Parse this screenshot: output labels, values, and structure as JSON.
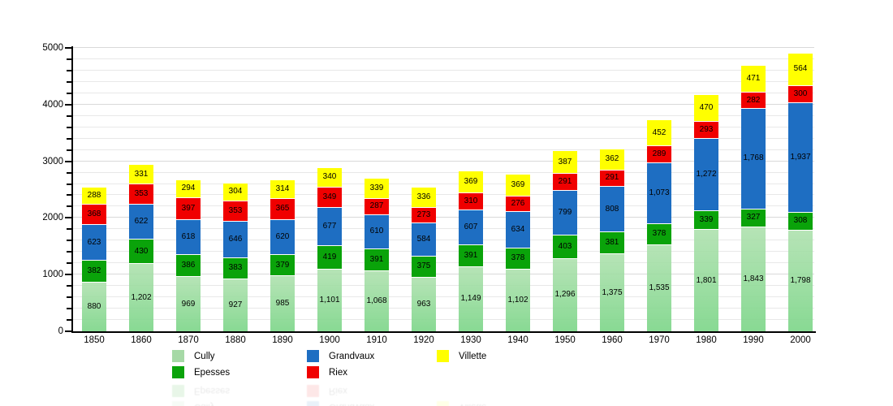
{
  "chart_data": {
    "type": "bar",
    "stacked": true,
    "title": "",
    "xlabel": "",
    "ylabel": "",
    "categories": [
      "1850",
      "1860",
      "1870",
      "1880",
      "1890",
      "1900",
      "1910",
      "1920",
      "1930",
      "1940",
      "1950",
      "1960",
      "1970",
      "1980",
      "1990",
      "2000"
    ],
    "series": [
      {
        "name": "Cully",
        "color": "#a6d9a6",
        "bar_gradient": [
          "rgba(172,224,172,0.88)",
          "rgba(126,214,138,0.92)"
        ],
        "values": [
          880,
          1202,
          969,
          927,
          985,
          1101,
          1068,
          963,
          1149,
          1102,
          1296,
          1375,
          1535,
          1801,
          1843,
          1798
        ]
      },
      {
        "name": "Epesses",
        "color": "#0aa30a",
        "bar_gradient": null,
        "values": [
          382,
          430,
          386,
          383,
          379,
          419,
          391,
          375,
          391,
          378,
          403,
          381,
          378,
          339,
          327,
          308
        ]
      },
      {
        "name": "Grandvaux",
        "color": "#1e6ec2",
        "bar_gradient": null,
        "values": [
          623,
          622,
          618,
          646,
          620,
          677,
          610,
          584,
          607,
          634,
          799,
          808,
          1073,
          1272,
          1768,
          1937
        ]
      },
      {
        "name": "Riex",
        "color": "#f00000",
        "bar_gradient": null,
        "values": [
          368,
          353,
          397,
          353,
          365,
          349,
          287,
          273,
          310,
          276,
          291,
          291,
          289,
          293,
          282,
          300
        ]
      },
      {
        "name": "Villette",
        "color": "#ffff00",
        "bar_gradient": null,
        "values": [
          288,
          331,
          294,
          304,
          314,
          340,
          339,
          336,
          369,
          369,
          387,
          362,
          452,
          470,
          471,
          564
        ]
      }
    ],
    "ylim": [
      0,
      5000
    ],
    "y_tick_labels": [
      "0",
      "1000",
      "2000",
      "3000",
      "4000",
      "5000"
    ],
    "y_major_step": 1000,
    "y_minor_step": 200,
    "grid": "on",
    "legend_position": "bottom",
    "legend_columns": [
      [
        "Cully",
        "Epesses"
      ],
      [
        "Grandvaux",
        "Riex"
      ],
      [
        "Villette"
      ]
    ],
    "axis_color": "#000000",
    "gridline_minor_color": "#e8e8e8",
    "gridline_major_color": "#d9d9d9",
    "background_color": "#ffffff"
  }
}
